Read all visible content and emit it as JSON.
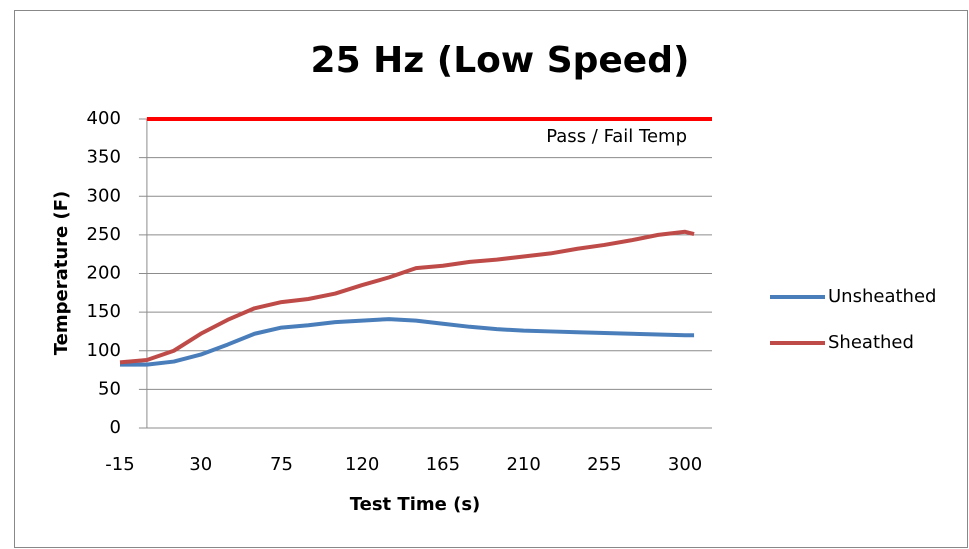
{
  "chart_data": {
    "type": "line",
    "title": "25 Hz (Low Speed)",
    "x_label": "Test Time (s)",
    "y_label": "Temperature (F)",
    "x": [
      -15,
      0,
      15,
      30,
      45,
      60,
      75,
      90,
      105,
      120,
      135,
      150,
      165,
      180,
      195,
      210,
      225,
      240,
      255,
      270,
      285,
      300,
      305
    ],
    "series": [
      {
        "name": "Unsheathed",
        "color": "#4a7ebb",
        "values": [
          82,
          82,
          86,
          95,
          108,
          122,
          130,
          133,
          137,
          139,
          141,
          139,
          135,
          131,
          128,
          126,
          125,
          124,
          123,
          122,
          121,
          120,
          120
        ]
      },
      {
        "name": "Sheathed",
        "color": "#be4b48",
        "values": [
          85,
          88,
          100,
          122,
          140,
          155,
          163,
          167,
          174,
          185,
          195,
          207,
          210,
          215,
          218,
          222,
          226,
          232,
          237,
          243,
          250,
          254,
          251
        ]
      }
    ],
    "reference_line": {
      "label": "Pass / Fail Temp",
      "y": 400,
      "x": [
        0,
        315
      ],
      "color": "#ff0000"
    },
    "xlim": [
      -15,
      315
    ],
    "xticks": [
      -15,
      30,
      75,
      120,
      165,
      210,
      255,
      300
    ],
    "ylim": [
      0,
      400
    ],
    "yticks": [
      0,
      50,
      100,
      150,
      200,
      250,
      300,
      350,
      400
    ],
    "grid": true,
    "legend": "right"
  }
}
